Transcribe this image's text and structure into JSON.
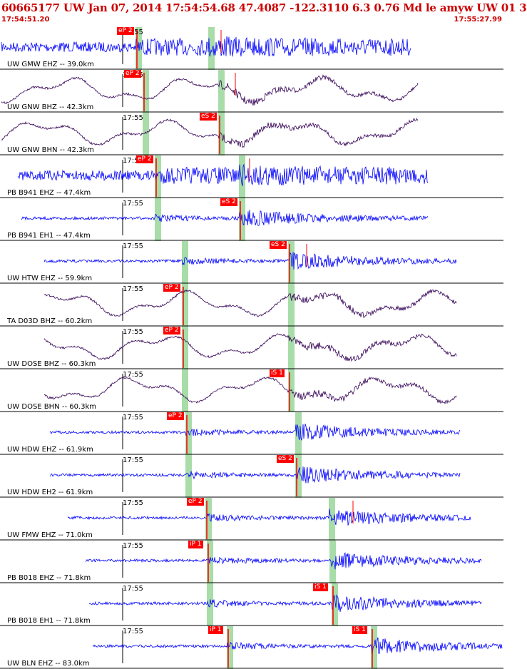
{
  "header": {
    "title": "60665177 UW Jan 07, 2014 17:54:54.68   47.4087 -122.3110  6.3 0.76 Md le amyw UW 01    3",
    "time_start": "17:54:51.20",
    "time_end": "17:55:27.99"
  },
  "time_tick_label": "17:55",
  "colors": {
    "header_red": "#cc0000",
    "trace_blue": "#0000ff",
    "trace_purple": "#330055",
    "pick_red": "#ff0000",
    "window_green": "#a8dca8"
  },
  "panels": [
    {
      "label": "UW GMW EHZ -- 39.0km",
      "picks": [
        "eP 2"
      ],
      "style": "noise"
    },
    {
      "label": "UW GNW BHZ -- 42.3km",
      "picks": [
        "eP 2"
      ],
      "style": "wave"
    },
    {
      "label": "UW GNW BHN -- 42.3km",
      "picks": [
        "eS 2"
      ],
      "style": "wave"
    },
    {
      "label": "PB B941 EHZ -- 47.4km",
      "picks": [
        "eP 2"
      ],
      "style": "noise"
    },
    {
      "label": "PB B941 EH1 -- 47.4km",
      "picks": [
        "eS 2"
      ],
      "style": "quiet"
    },
    {
      "label": "UW HTW EHZ -- 59.9km",
      "picks": [
        "eS 2"
      ],
      "style": "quiet"
    },
    {
      "label": "TA D03D BHZ -- 60.2km",
      "picks": [
        "eP 2"
      ],
      "style": "wave"
    },
    {
      "label": "UW DOSE BHZ -- 60.3km",
      "picks": [
        "eP 2"
      ],
      "style": "wave"
    },
    {
      "label": "UW DOSE BHN -- 60.3km",
      "picks": [
        "iS 1"
      ],
      "style": "wave"
    },
    {
      "label": "UW HDW EHZ -- 61.9km",
      "picks": [
        "eP 2"
      ],
      "style": "quiet"
    },
    {
      "label": "UW HDW EH2 -- 61.9km",
      "picks": [
        "eS 2"
      ],
      "style": "quiet"
    },
    {
      "label": "UW FMW EHZ -- 71.0km",
      "picks": [
        "eP 2"
      ],
      "style": "quiet"
    },
    {
      "label": "PB B018 EHZ -- 71.8km",
      "picks": [
        "iP 1"
      ],
      "style": "quiet"
    },
    {
      "label": "PB B018 EH1 -- 71.8km",
      "picks": [
        "iS 1"
      ],
      "style": "quiet"
    },
    {
      "label": "UW BLN EHZ -- 83.0km",
      "picks": [
        "iP 1",
        "iS 1"
      ],
      "style": "quiet"
    }
  ]
}
